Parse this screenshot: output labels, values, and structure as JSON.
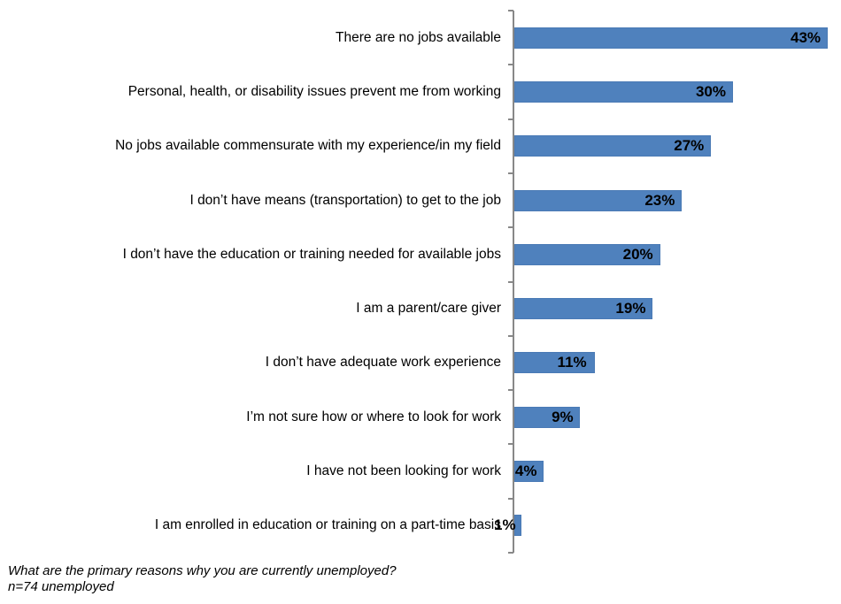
{
  "chart_data": {
    "type": "bar",
    "orientation": "horizontal",
    "categories": [
      "There are no jobs available",
      "Personal, health, or disability issues prevent me from working",
      "No jobs available commensurate with my experience/in my field",
      "I don’t have means (transportation) to get to the job",
      "I don’t have the education or training needed for available jobs",
      "I am a parent/care giver",
      "I don’t have adequate work experience",
      "I’m not sure how or where to look for work",
      "I have not been looking for work",
      "I am enrolled in education or training on a part-time basis"
    ],
    "values": [
      43,
      30,
      27,
      23,
      20,
      19,
      11,
      9,
      4,
      1
    ],
    "value_labels": [
      "43%",
      "30%",
      "27%",
      "23%",
      "20%",
      "19%",
      "11%",
      "9%",
      "4%",
      "1%"
    ],
    "title": "",
    "xlabel": "",
    "ylabel": "",
    "xlim": [
      0,
      43
    ],
    "grid": false,
    "legend": null,
    "bar_color": "#4f81bd"
  },
  "footnote": {
    "question": "What are the primary reasons why you are currently unemployed?",
    "sample": "n=74 unemployed"
  }
}
